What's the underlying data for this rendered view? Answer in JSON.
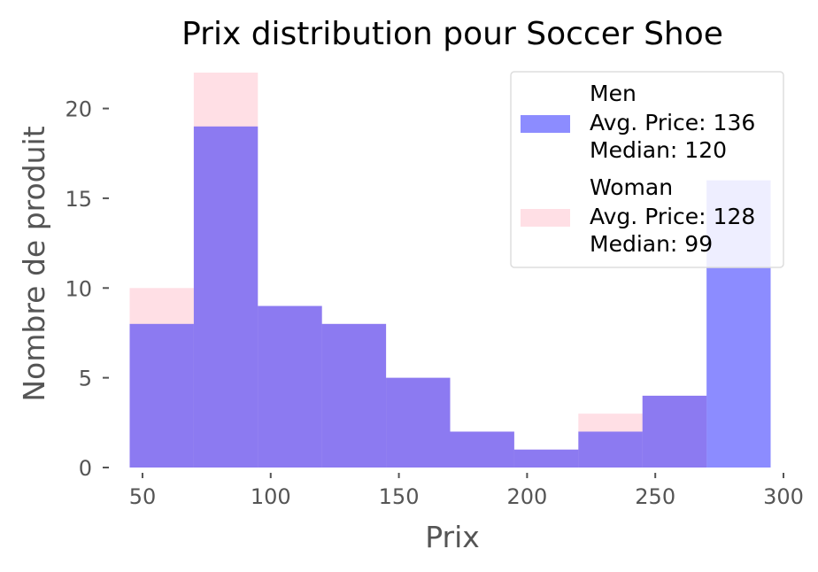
{
  "chart_data": {
    "type": "bar",
    "title": "Prix distribution pour Soccer Shoe",
    "xlabel": "Prix",
    "ylabel": "Nombre de produit",
    "xlim": [
      40,
      300
    ],
    "ylim": [
      0,
      22
    ],
    "xticks": [
      50,
      100,
      150,
      200,
      250,
      300
    ],
    "yticks": [
      0,
      5,
      10,
      15,
      20
    ],
    "bin_edges": [
      45,
      70,
      95,
      120,
      145,
      170,
      195,
      220,
      245,
      270,
      295
    ],
    "series": [
      {
        "name": "Men",
        "color": "#0000ff",
        "values": [
          8,
          19,
          9,
          8,
          5,
          2,
          1,
          2,
          4,
          16
        ],
        "legend_lines": [
          "Men",
          "Avg. Price: 136",
          "Median: 120"
        ]
      },
      {
        "name": "Woman",
        "color": "#ffc0cb",
        "values": [
          10,
          22,
          9,
          8,
          5,
          2,
          1,
          3,
          4,
          0
        ],
        "legend_lines": [
          "Woman",
          "Avg. Price: 128",
          "Median: 99"
        ]
      }
    ],
    "legend_position": "top-right",
    "grid": false
  }
}
